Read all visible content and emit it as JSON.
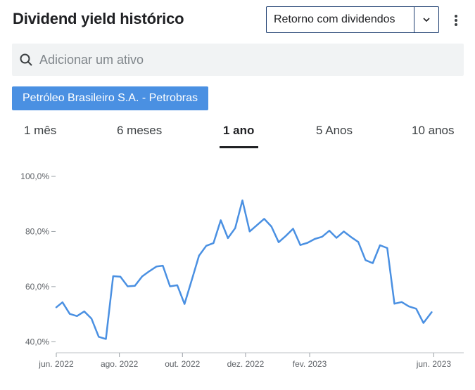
{
  "header": {
    "title": "Dividend yield histórico"
  },
  "dropdown": {
    "selected": "Retorno com dividendos"
  },
  "search": {
    "placeholder": "Adicionar um ativo"
  },
  "asset_chip": {
    "label": "Petróleo Brasileiro S.A. - Petrobras"
  },
  "tabs": [
    {
      "label": "1 mês",
      "active": false
    },
    {
      "label": "6 meses",
      "active": false
    },
    {
      "label": "1 ano",
      "active": true
    },
    {
      "label": "5 Anos",
      "active": false
    },
    {
      "label": "10 anos",
      "active": false
    }
  ],
  "colors": {
    "line": "#4a90e2",
    "chip": "#4a90e2",
    "select_border": "#1a3b6e"
  },
  "chart_data": {
    "type": "line",
    "title": "",
    "xlabel": "",
    "ylabel": "",
    "ylim": [
      36,
      100
    ],
    "y_ticks": [
      {
        "value": 100,
        "label": "100,0%"
      },
      {
        "value": 80,
        "label": "80,0%"
      },
      {
        "value": 60,
        "label": "60,0%"
      },
      {
        "value": 40,
        "label": "40,0%"
      }
    ],
    "x_ticks": [
      {
        "date": "2022-06-01",
        "label": "jun. 2022"
      },
      {
        "date": "2022-08-01",
        "label": "ago. 2022"
      },
      {
        "date": "2022-10-01",
        "label": "out. 2022"
      },
      {
        "date": "2022-12-01",
        "label": "dez. 2022"
      },
      {
        "date": "2023-02-01",
        "label": "fev. 2023"
      },
      {
        "date": "2023-06-01",
        "label": "jun. 2023"
      }
    ],
    "x_range": [
      "2022-06-01",
      "2023-06-30"
    ],
    "grid": false,
    "series": [
      {
        "points": [
          [
            "2022-06-01",
            52.5
          ],
          [
            "2022-06-07",
            54.3
          ],
          [
            "2022-06-14",
            50.1
          ],
          [
            "2022-06-21",
            49.3
          ],
          [
            "2022-06-28",
            51.0
          ],
          [
            "2022-07-05",
            48.4
          ],
          [
            "2022-07-12",
            41.8
          ],
          [
            "2022-07-19",
            41.0
          ],
          [
            "2022-07-26",
            63.8
          ],
          [
            "2022-08-02",
            63.6
          ],
          [
            "2022-08-09",
            60.1
          ],
          [
            "2022-08-16",
            60.3
          ],
          [
            "2022-08-23",
            63.7
          ],
          [
            "2022-08-30",
            65.6
          ],
          [
            "2022-09-06",
            67.3
          ],
          [
            "2022-09-12",
            67.6
          ],
          [
            "2022-09-19",
            60.1
          ],
          [
            "2022-09-26",
            60.5
          ],
          [
            "2022-10-03",
            53.7
          ],
          [
            "2022-10-10",
            62.4
          ],
          [
            "2022-10-17",
            71.2
          ],
          [
            "2022-10-24",
            74.8
          ],
          [
            "2022-10-31",
            75.8
          ],
          [
            "2022-11-07",
            84.1
          ],
          [
            "2022-11-14",
            77.6
          ],
          [
            "2022-11-21",
            81.2
          ],
          [
            "2022-11-28",
            91.3
          ],
          [
            "2022-12-05",
            80.0
          ],
          [
            "2022-12-12",
            82.3
          ],
          [
            "2022-12-19",
            84.6
          ],
          [
            "2022-12-26",
            81.8
          ],
          [
            "2023-01-02",
            76.1
          ],
          [
            "2023-01-09",
            78.4
          ],
          [
            "2023-01-16",
            81.0
          ],
          [
            "2023-01-23",
            75.1
          ],
          [
            "2023-01-30",
            75.9
          ],
          [
            "2023-02-06",
            77.3
          ],
          [
            "2023-02-13",
            78.1
          ],
          [
            "2023-02-20",
            80.3
          ],
          [
            "2023-02-27",
            77.7
          ],
          [
            "2023-03-06",
            80.0
          ],
          [
            "2023-03-13",
            78.0
          ],
          [
            "2023-03-20",
            76.2
          ],
          [
            "2023-03-27",
            69.6
          ],
          [
            "2023-04-03",
            68.5
          ],
          [
            "2023-04-10",
            75.0
          ],
          [
            "2023-04-17",
            74.0
          ],
          [
            "2023-04-24",
            53.8
          ],
          [
            "2023-05-01",
            54.4
          ],
          [
            "2023-05-08",
            52.8
          ],
          [
            "2023-05-15",
            52.0
          ],
          [
            "2023-05-22",
            46.8
          ],
          [
            "2023-05-30",
            50.7
          ]
        ]
      }
    ]
  }
}
